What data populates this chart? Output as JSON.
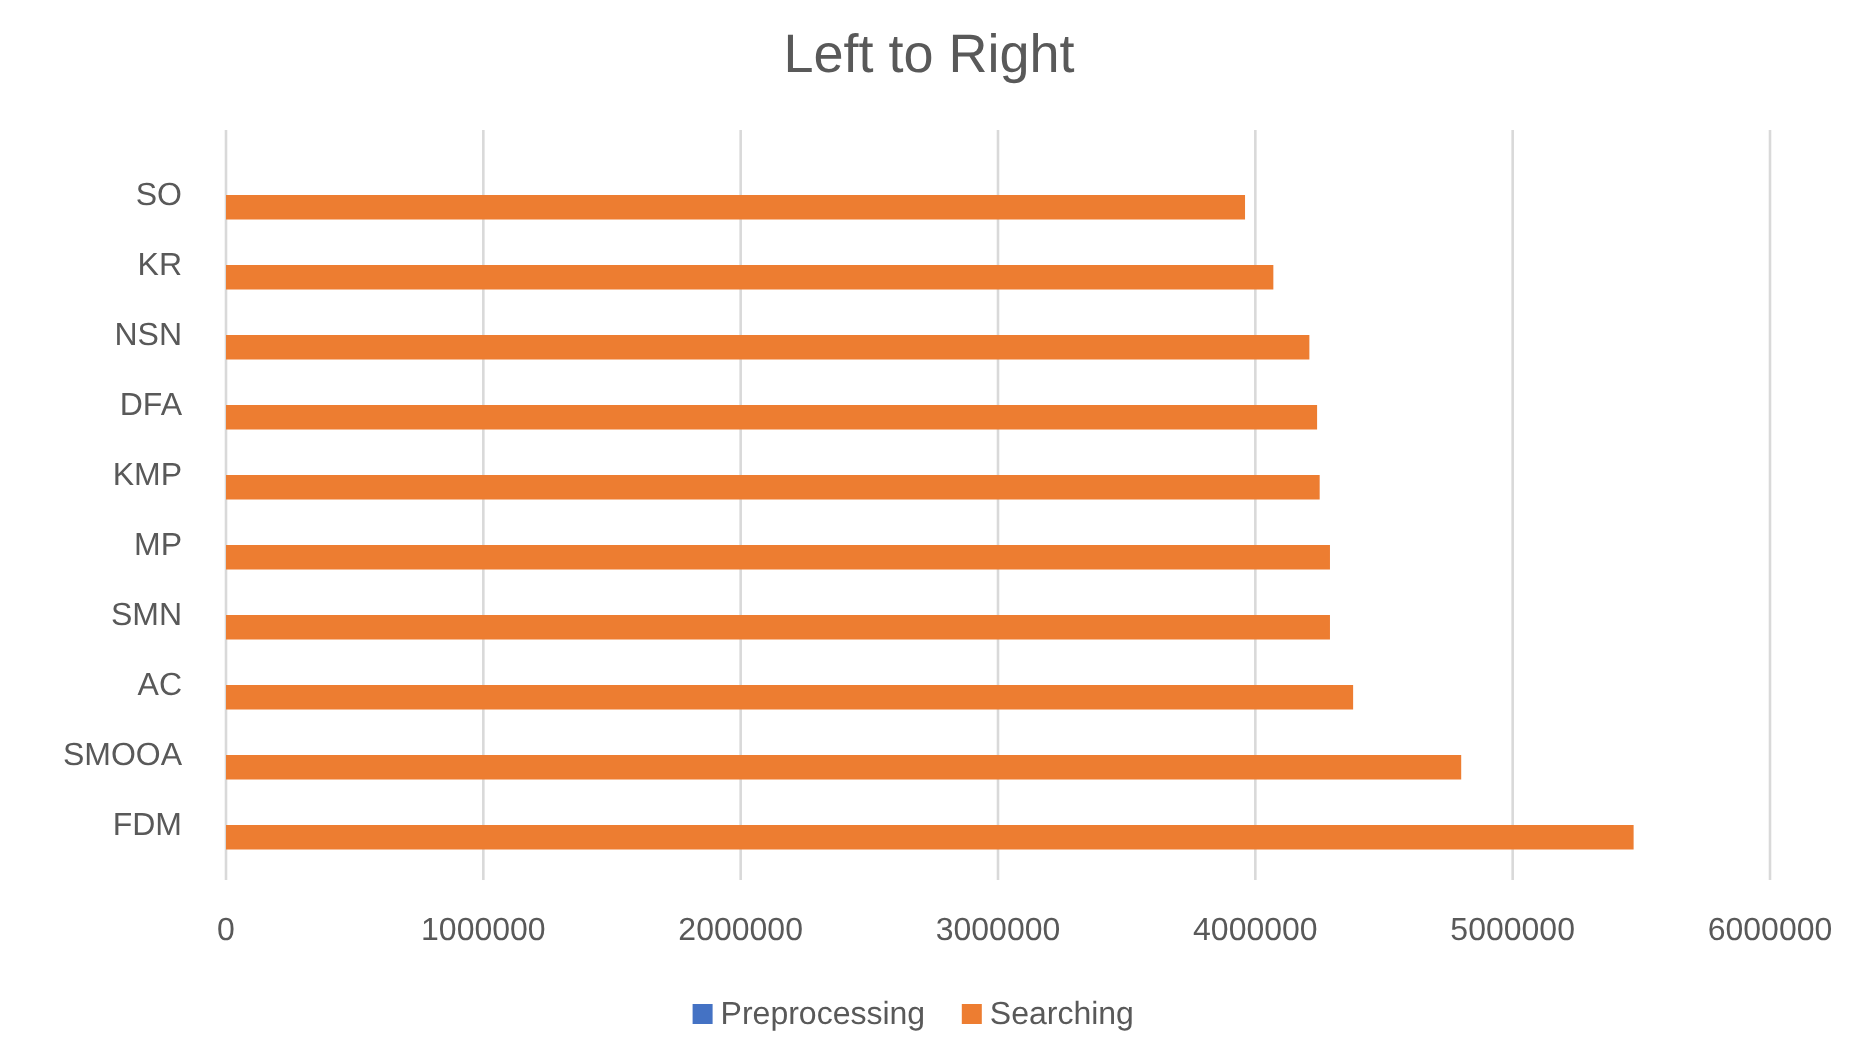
{
  "chart_data": {
    "type": "bar",
    "orientation": "horizontal",
    "title": "Left to Right",
    "categories": [
      "SO",
      "KR",
      "NSN",
      "DFA",
      "KMP",
      "MP",
      "SMN",
      "AC",
      "SMOOA",
      "FDM"
    ],
    "series": [
      {
        "name": "Preprocessing",
        "color": "#4472c4",
        "values": [
          0,
          0,
          0,
          0,
          0,
          0,
          0,
          0,
          0,
          0
        ]
      },
      {
        "name": "Searching",
        "color": "#ed7d31",
        "values": [
          3960000,
          4070000,
          4210000,
          4240000,
          4250000,
          4290000,
          4290000,
          4380000,
          4800000,
          5470000
        ]
      }
    ],
    "xlim": [
      0,
      6000000
    ],
    "xticks": [
      0,
      1000000,
      2000000,
      3000000,
      4000000,
      5000000,
      6000000
    ],
    "grid": "x",
    "legend": "bottom"
  }
}
